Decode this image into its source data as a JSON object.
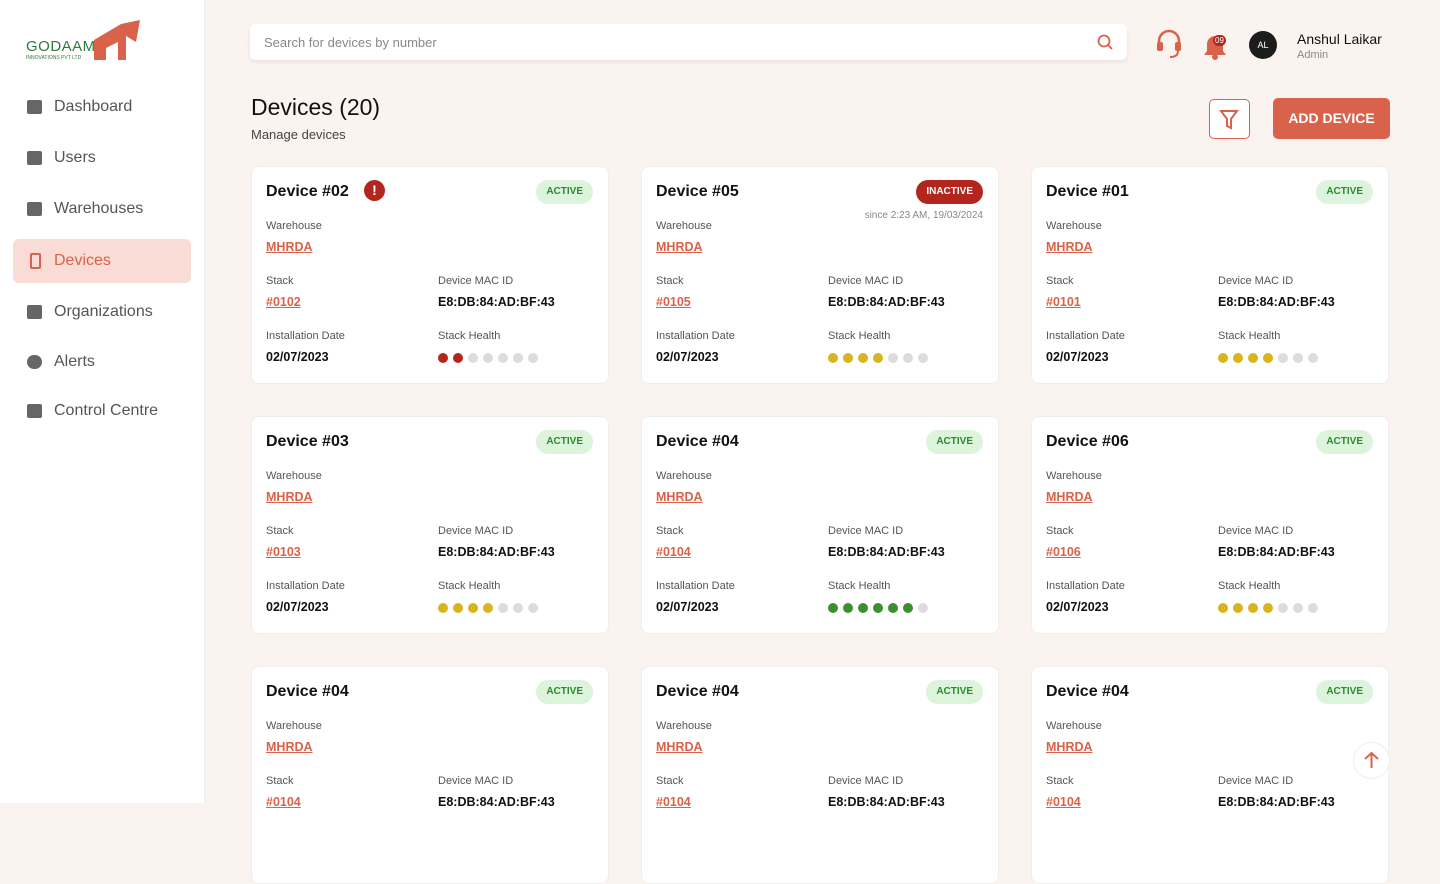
{
  "brand": {
    "name": "GODAAM",
    "tagline": "INNOVATIONS PVT LTD"
  },
  "nav": [
    {
      "label": "Dashboard",
      "active": false
    },
    {
      "label": "Users",
      "active": false
    },
    {
      "label": "Warehouses",
      "active": false
    },
    {
      "label": "Devices",
      "active": true
    },
    {
      "label": "Organizations",
      "active": false
    },
    {
      "label": "Alerts",
      "active": false
    },
    {
      "label": "Control Centre",
      "active": false
    }
  ],
  "search": {
    "placeholder": "Search for devices by number"
  },
  "notifications": {
    "count": "09"
  },
  "user": {
    "initials": "AL",
    "name": "Anshul Laikar",
    "role": "Admin"
  },
  "page": {
    "title": "Devices (20)",
    "subtitle": "Manage devices",
    "add_button": "ADD DEVICE"
  },
  "field_labels": {
    "warehouse": "Warehouse",
    "stack": "Stack",
    "mac": "Device MAC ID",
    "installation": "Installation Date",
    "health": "Stack Health"
  },
  "health_total": 7,
  "devices": [
    {
      "name": "Device #02",
      "alert": true,
      "status": "ACTIVE",
      "warehouse": "MHRDA",
      "stack": "#0102",
      "mac": "E8:DB:84:AD:BF:43",
      "installation_date": "02/07/2023",
      "health": 2,
      "health_color": "#b3261e"
    },
    {
      "name": "Device #05",
      "alert": false,
      "status": "INACTIVE",
      "since": "since 2:23 AM, 19/03/2024",
      "warehouse": "MHRDA",
      "stack": "#0105",
      "mac": "E8:DB:84:AD:BF:43",
      "installation_date": "02/07/2023",
      "health": 4,
      "health_color": "#d8b41e"
    },
    {
      "name": "Device #01",
      "alert": false,
      "status": "ACTIVE",
      "warehouse": "MHRDA",
      "stack": "#0101",
      "mac": "E8:DB:84:AD:BF:43",
      "installation_date": "02/07/2023",
      "health": 4,
      "health_color": "#d8b41e"
    },
    {
      "name": "Device #03",
      "alert": false,
      "status": "ACTIVE",
      "warehouse": "MHRDA",
      "stack": "#0103",
      "mac": "E8:DB:84:AD:BF:43",
      "installation_date": "02/07/2023",
      "health": 4,
      "health_color": "#d8b41e"
    },
    {
      "name": "Device #04",
      "alert": false,
      "status": "ACTIVE",
      "warehouse": "MHRDA",
      "stack": "#0104",
      "mac": "E8:DB:84:AD:BF:43",
      "installation_date": "02/07/2023",
      "health": 6,
      "health_color": "#3b8f2e"
    },
    {
      "name": "Device #06",
      "alert": false,
      "status": "ACTIVE",
      "warehouse": "MHRDA",
      "stack": "#0106",
      "mac": "E8:DB:84:AD:BF:43",
      "installation_date": "02/07/2023",
      "health": 4,
      "health_color": "#d8b41e"
    },
    {
      "name": "Device #04",
      "alert": false,
      "status": "ACTIVE",
      "warehouse": "MHRDA",
      "stack": "#0104",
      "mac": "E8:DB:84:AD:BF:43"
    },
    {
      "name": "Device #04",
      "alert": false,
      "status": "ACTIVE",
      "warehouse": "MHRDA",
      "stack": "#0104",
      "mac": "E8:DB:84:AD:BF:43"
    },
    {
      "name": "Device #04",
      "alert": false,
      "status": "ACTIVE",
      "warehouse": "MHRDA",
      "stack": "#0104",
      "mac": "E8:DB:84:AD:BF:43"
    }
  ]
}
